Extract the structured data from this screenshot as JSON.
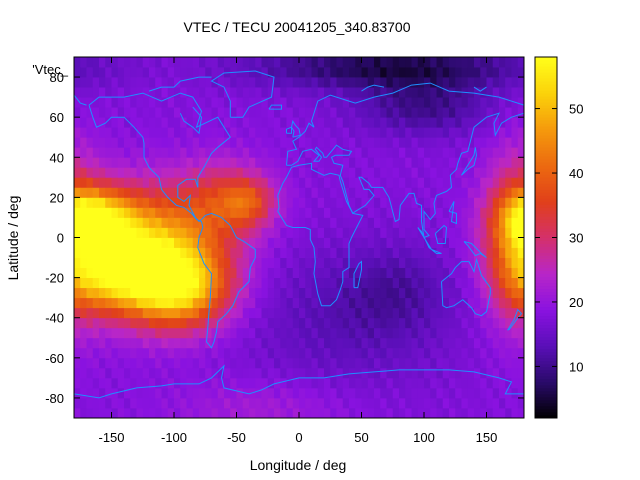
{
  "chart_data": {
    "type": "heatmap",
    "title": "VTEC / TECU 20041205_340.83700",
    "xlabel": "Longitude / deg",
    "ylabel": "Latitude / deg",
    "legend_label": "'Vtec_",
    "xlim": [
      -180,
      180
    ],
    "ylim": [
      -90,
      90
    ],
    "x_ticks": [
      -150,
      -100,
      -50,
      0,
      50,
      100,
      150
    ],
    "y_ticks": [
      -80,
      -60,
      -40,
      -20,
      0,
      20,
      40,
      60,
      80
    ],
    "colorbar": {
      "range": [
        2,
        58
      ],
      "ticks": [
        10,
        20,
        30,
        40,
        50
      ],
      "palette": [
        "#000000",
        "#2a0a6a",
        "#5a0fb8",
        "#8a12e0",
        "#b826c8",
        "#d4306a",
        "#e0401a",
        "#ec6a10",
        "#f59a0c",
        "#fbd20a",
        "#ffff1a"
      ]
    },
    "grid": false,
    "overlay": "world coastlines",
    "overlay_color": "#1e8fff",
    "background_level": 18,
    "blobs": [
      {
        "lon": -165,
        "lat": 10,
        "sx": 22,
        "sy": 10,
        "amp": 26
      },
      {
        "lon": -125,
        "lat": -5,
        "sx": 40,
        "sy": 20,
        "amp": 32
      },
      {
        "lon": -95,
        "lat": -25,
        "sx": 28,
        "sy": 14,
        "amp": 30
      },
      {
        "lon": -150,
        "lat": -20,
        "sx": 28,
        "sy": 12,
        "amp": 18
      },
      {
        "lon": -60,
        "lat": 18,
        "sx": 25,
        "sy": 14,
        "amp": 14
      },
      {
        "lon": -40,
        "lat": 18,
        "sx": 14,
        "sy": 8,
        "amp": 12
      },
      {
        "lon": 175,
        "lat": 0,
        "sx": 18,
        "sy": 28,
        "amp": 18
      },
      {
        "lon": 75,
        "lat": 85,
        "sx": 80,
        "sy": 8,
        "amp": -12
      },
      {
        "lon": 100,
        "lat": 65,
        "sx": 40,
        "sy": 10,
        "amp": -8
      },
      {
        "lon": 40,
        "lat": -40,
        "sx": 60,
        "sy": 25,
        "amp": -5
      },
      {
        "lon": 80,
        "lat": -25,
        "sx": 30,
        "sy": 15,
        "amp": -4
      },
      {
        "lon": -30,
        "lat": -85,
        "sx": 50,
        "sy": 10,
        "amp": 4
      }
    ]
  }
}
